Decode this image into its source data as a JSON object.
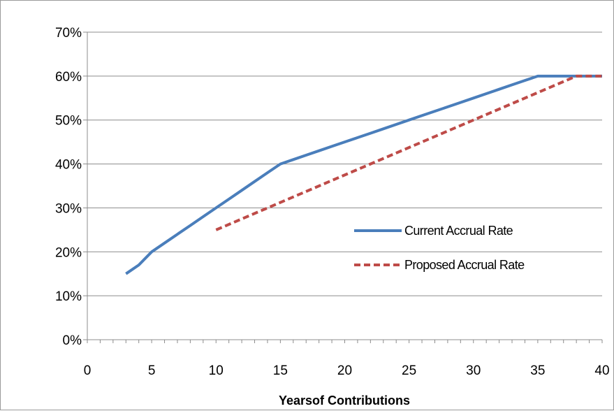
{
  "chart_data": {
    "type": "line",
    "title": "",
    "xlabel": "Yearsof Contributions",
    "ylabel": "",
    "xlim": [
      0,
      40
    ],
    "ylim": [
      0,
      70
    ],
    "x_ticks": [
      0,
      5,
      10,
      15,
      20,
      25,
      30,
      35,
      40
    ],
    "x_tick_labels": [
      "0",
      "5",
      "10",
      "15",
      "20",
      "25",
      "30",
      "35",
      "40"
    ],
    "y_ticks": [
      0,
      10,
      20,
      30,
      40,
      50,
      60,
      70
    ],
    "y_tick_labels": [
      "0%",
      "10%",
      "20%",
      "30%",
      "40%",
      "50%",
      "60%",
      "70%"
    ],
    "grid": "horizontal",
    "legend_position": "right-middle",
    "series": [
      {
        "name": "Current Accrual Rate",
        "color": "#4a7ebb",
        "style": "solid",
        "x": [
          3,
          4,
          5,
          6,
          7,
          8,
          9,
          10,
          11,
          12,
          13,
          14,
          15,
          16,
          17,
          18,
          19,
          20,
          21,
          22,
          23,
          24,
          25,
          26,
          27,
          28,
          29,
          30,
          31,
          32,
          33,
          34,
          35,
          36,
          37,
          38,
          39,
          40
        ],
        "values": [
          15,
          17,
          20,
          22,
          24,
          26,
          28,
          30,
          32,
          34,
          36,
          38,
          40,
          41,
          42,
          43,
          44,
          45,
          46,
          47,
          48,
          49,
          50,
          51,
          52,
          53,
          54,
          55,
          56,
          57,
          58,
          59,
          60,
          60,
          60,
          60,
          60,
          60
        ]
      },
      {
        "name": "Proposed Accrual Rate",
        "color": "#be4b48",
        "style": "dashed",
        "x": [
          10,
          38,
          40
        ],
        "values": [
          25,
          60,
          60
        ]
      }
    ]
  }
}
